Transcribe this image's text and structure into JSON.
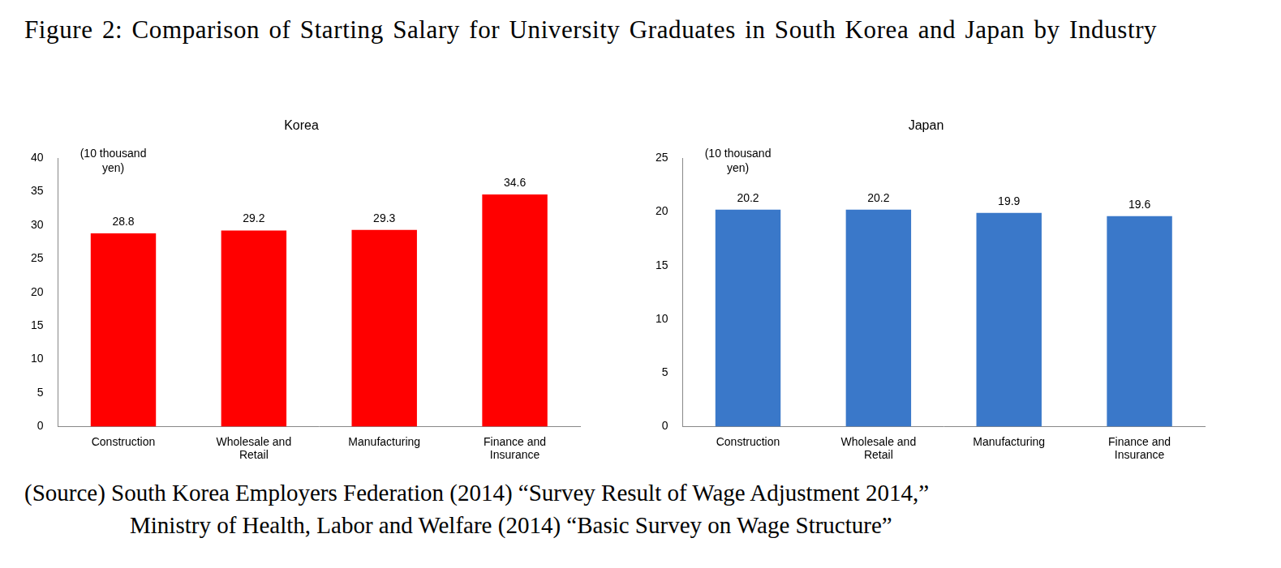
{
  "title": "Figure 2: Comparison of Starting Salary for University Graduates in South Korea and Japan by Industry",
  "source": [
    "(Source) South Korea Employers Federation (2014) “Survey Result of Wage Adjustment 2014,”",
    "Ministry of Health, Labor and Welfare (2014) “Basic Survey on Wage Structure”"
  ],
  "chart_data": [
    {
      "type": "bar",
      "title": "Korea",
      "ylabel": "(10 thousand yen)",
      "categories": [
        "Construction",
        "Wholesale and Retail",
        "Manufacturing",
        "Finance and Insurance"
      ],
      "values": [
        28.8,
        29.2,
        29.3,
        34.6
      ],
      "color": "#ff0000",
      "ylim": [
        0,
        40
      ],
      "yticks": [
        0,
        5,
        10,
        15,
        20,
        25,
        30,
        35,
        40
      ],
      "grid": false,
      "data_labels": true
    },
    {
      "type": "bar",
      "title": "Japan",
      "ylabel": "(10 thousand yen)",
      "categories": [
        "Construction",
        "Wholesale and Retail",
        "Manufacturing",
        "Finance and Insurance"
      ],
      "values": [
        20.2,
        20.2,
        19.9,
        19.6
      ],
      "color": "#3a78c9",
      "ylim": [
        0,
        25
      ],
      "yticks": [
        0,
        5,
        10,
        15,
        20,
        25
      ],
      "grid": false,
      "data_labels": true
    }
  ]
}
